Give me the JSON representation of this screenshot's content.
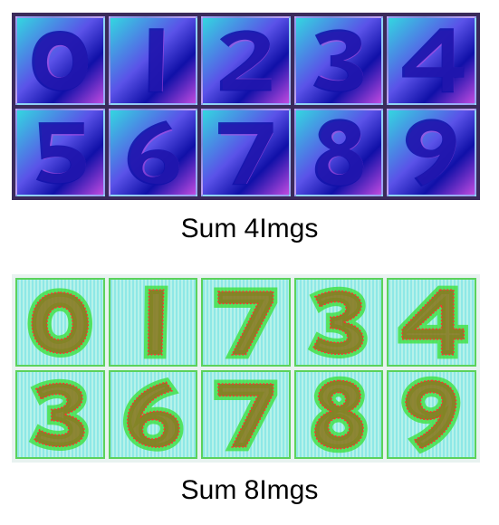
{
  "panels": [
    {
      "caption": "Sum 4Imgs",
      "style": "purple",
      "digits": [
        "0",
        "1",
        "2",
        "3",
        "4",
        "5",
        "6",
        "7",
        "8",
        "9"
      ]
    },
    {
      "caption": "Sum 8Imgs",
      "style": "green",
      "digits": [
        "0",
        "1",
        "7",
        "3",
        "4",
        "3",
        "6",
        "7",
        "8",
        "9"
      ]
    }
  ],
  "colors": {
    "purple_dark": "#1010a8",
    "purple_mid": "#5a52e8",
    "magenta": "#c04ae0",
    "cyan": "#33d6e0",
    "green": "#3fe03f",
    "olive": "#8a7a20",
    "red": "#ff3030"
  }
}
